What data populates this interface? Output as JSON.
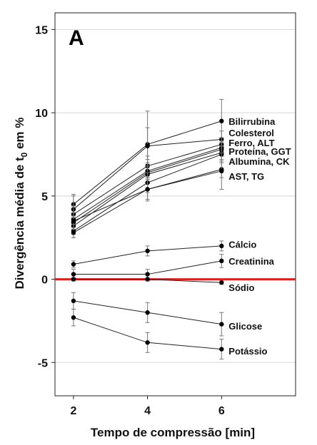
{
  "chart_data": {
    "type": "line",
    "panel_label": "A",
    "xlabel": "Tempo de compressão [min]",
    "ylabel_main": "Divergência média de t",
    "ylabel_sub": "0",
    "ylabel_end": " em %",
    "xlim": [
      1.5,
      8.0
    ],
    "ylim": [
      -7,
      16
    ],
    "x_ticks": [
      2,
      4,
      6
    ],
    "y_ticks": [
      -5,
      0,
      5,
      10,
      15
    ],
    "grid": true,
    "reference_line": {
      "y": 0,
      "color": "#e02020"
    },
    "x": [
      2,
      4,
      6
    ],
    "series": [
      {
        "values": [
          4.5,
          8.1,
          9.5
        ],
        "err": [
          0.6,
          2.0,
          1.3
        ]
      },
      {
        "values": [
          4.2,
          8.0,
          8.4
        ],
        "err": [
          0.8,
          1.1,
          0.5
        ]
      },
      {
        "values": [
          3.9,
          6.8,
          8.1
        ],
        "err": [
          0.5,
          0.6,
          0.4
        ]
      },
      {
        "values": [
          3.6,
          6.5,
          7.9
        ],
        "err": [
          0.4,
          0.7,
          0.4
        ]
      },
      {
        "values": [
          3.4,
          6.4,
          7.8
        ],
        "err": [
          0.4,
          0.6,
          0.4
        ]
      },
      {
        "values": [
          3.2,
          6.3,
          7.6
        ],
        "err": [
          0.5,
          0.5,
          0.4
        ]
      },
      {
        "values": [
          2.9,
          5.8,
          7.5
        ],
        "err": [
          0.4,
          0.6,
          0.5
        ]
      },
      {
        "values": [
          2.8,
          5.4,
          6.6
        ],
        "err": [
          0.3,
          0.6,
          0.5
        ]
      },
      {
        "values": [
          3.5,
          5.4,
          6.5
        ],
        "err": [
          0.5,
          0.7,
          1.1
        ]
      },
      {
        "values": [
          0.9,
          1.7,
          2.0
        ],
        "err": [
          0.2,
          0.3,
          0.3
        ]
      },
      {
        "values": [
          0.3,
          0.3,
          1.1
        ],
        "err": [
          0.3,
          0.3,
          0.4
        ]
      },
      {
        "values": [
          0.0,
          0.0,
          -0.2
        ],
        "err": [
          0.1,
          0.1,
          0.1
        ]
      },
      {
        "values": [
          -1.3,
          -2.0,
          -2.7
        ],
        "err": [
          0.5,
          0.6,
          0.7
        ]
      },
      {
        "values": [
          -2.3,
          -3.8,
          -4.2
        ],
        "err": [
          0.5,
          0.6,
          0.6
        ]
      }
    ],
    "labels": [
      {
        "text": "Bilirrubina",
        "y": 9.5
      },
      {
        "text": "Colesterol",
        "y": 8.8
      },
      {
        "text": "Ferro, ALT",
        "y": 8.2
      },
      {
        "text": "Proteína, GGT",
        "y": 7.7
      },
      {
        "text": "Albumina, CK",
        "y": 7.1
      },
      {
        "text": "AST, TG",
        "y": 6.2
      },
      {
        "text": "Cálcio",
        "y": 2.1
      },
      {
        "text": "Creatinina",
        "y": 1.1
      },
      {
        "text": "Sódio",
        "y": -0.5
      },
      {
        "text": "Glicose",
        "y": -2.8
      },
      {
        "text": "Potássio",
        "y": -4.3
      }
    ]
  }
}
